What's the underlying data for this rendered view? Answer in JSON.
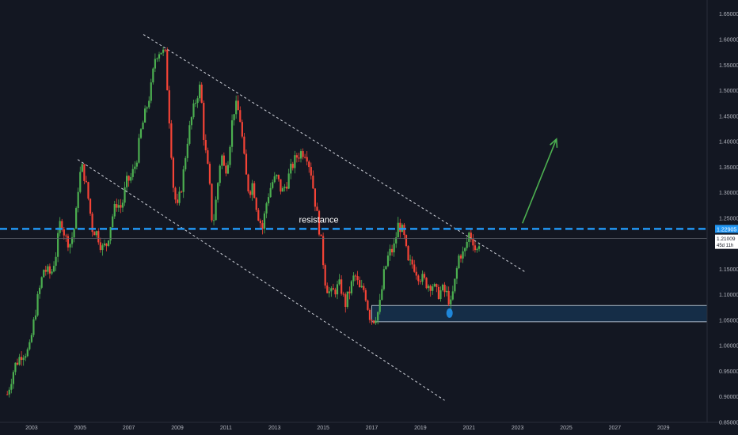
{
  "chart_data": {
    "type": "candlestick",
    "title": "",
    "xlabel": "",
    "ylabel": "",
    "xlim": [
      2001.7,
      2030.8
    ],
    "ylim": [
      0.85,
      1.6775
    ],
    "x_ticks": [
      2003,
      2005,
      2007,
      2009,
      2011,
      2013,
      2015,
      2017,
      2019,
      2021,
      2023,
      2025,
      2027,
      2029
    ],
    "y_ticks": [
      "0.85000",
      "0.90000",
      "0.95000",
      "1.00000",
      "1.05000",
      "1.10000",
      "1.15000",
      "1.20000",
      "1.25000",
      "1.30000",
      "1.35000",
      "1.40000",
      "1.45000",
      "1.50000",
      "1.55000",
      "1.60000",
      "1.65000"
    ],
    "grid": false,
    "colors": {
      "background": "#131722",
      "up": "#4caf50",
      "down": "#f44336",
      "resistance_line": "#2196f3",
      "arrow": "#4caf50",
      "trend_line": "#d1d4dc",
      "axis_text": "#b2b5be"
    },
    "price_labels": {
      "resistance_value": "1.22905",
      "current_value": "1.21009",
      "countdown": "45d 11h"
    },
    "annotations": {
      "resistance_label": "resistance"
    },
    "resistance_level": 1.22905,
    "current_price": 1.21009,
    "support_zone": {
      "x_start": 2017.0,
      "x_end": 2030.8,
      "y_low": 1.047,
      "y_high": 1.079
    },
    "channel_upper": [
      [
        2007.6,
        1.61
      ],
      [
        2023.3,
        1.145
      ]
    ],
    "channel_lower": [
      [
        2004.9,
        1.365
      ],
      [
        2020.0,
        0.893
      ]
    ],
    "forecast_arrow": [
      [
        2023.2,
        1.24
      ],
      [
        2024.6,
        1.405
      ]
    ],
    "low_marker": {
      "x": 2020.2,
      "y": 1.064
    },
    "price_path": [
      [
        2002.0,
        0.905
      ],
      [
        2002.3,
        0.96
      ],
      [
        2002.6,
        0.985
      ],
      [
        2002.9,
        0.99
      ],
      [
        2003.2,
        1.08
      ],
      [
        2003.5,
        1.15
      ],
      [
        2003.8,
        1.14
      ],
      [
        2004.0,
        1.18
      ],
      [
        2004.2,
        1.25
      ],
      [
        2004.4,
        1.21
      ],
      [
        2004.6,
        1.2
      ],
      [
        2004.8,
        1.24
      ],
      [
        2004.95,
        1.33
      ],
      [
        2005.1,
        1.35
      ],
      [
        2005.3,
        1.3
      ],
      [
        2005.5,
        1.23
      ],
      [
        2005.7,
        1.22
      ],
      [
        2005.9,
        1.19
      ],
      [
        2006.1,
        1.2
      ],
      [
        2006.3,
        1.25
      ],
      [
        2006.5,
        1.28
      ],
      [
        2006.7,
        1.27
      ],
      [
        2006.9,
        1.32
      ],
      [
        2007.1,
        1.33
      ],
      [
        2007.3,
        1.36
      ],
      [
        2007.5,
        1.42
      ],
      [
        2007.7,
        1.46
      ],
      [
        2007.9,
        1.5
      ],
      [
        2008.1,
        1.57
      ],
      [
        2008.3,
        1.58
      ],
      [
        2008.5,
        1.57
      ],
      [
        2008.7,
        1.42
      ],
      [
        2008.85,
        1.3
      ],
      [
        2009.0,
        1.27
      ],
      [
        2009.2,
        1.32
      ],
      [
        2009.4,
        1.4
      ],
      [
        2009.6,
        1.45
      ],
      [
        2009.8,
        1.49
      ],
      [
        2009.95,
        1.51
      ],
      [
        2010.1,
        1.4
      ],
      [
        2010.3,
        1.33
      ],
      [
        2010.45,
        1.23
      ],
      [
        2010.6,
        1.29
      ],
      [
        2010.8,
        1.38
      ],
      [
        2010.95,
        1.34
      ],
      [
        2011.1,
        1.37
      ],
      [
        2011.3,
        1.46
      ],
      [
        2011.45,
        1.47
      ],
      [
        2011.6,
        1.44
      ],
      [
        2011.8,
        1.34
      ],
      [
        2011.95,
        1.3
      ],
      [
        2012.1,
        1.32
      ],
      [
        2012.3,
        1.26
      ],
      [
        2012.5,
        1.23
      ],
      [
        2012.7,
        1.29
      ],
      [
        2012.9,
        1.32
      ],
      [
        2013.1,
        1.33
      ],
      [
        2013.3,
        1.3
      ],
      [
        2013.5,
        1.32
      ],
      [
        2013.7,
        1.35
      ],
      [
        2013.9,
        1.37
      ],
      [
        2014.1,
        1.38
      ],
      [
        2014.3,
        1.38
      ],
      [
        2014.5,
        1.34
      ],
      [
        2014.7,
        1.27
      ],
      [
        2014.9,
        1.21
      ],
      [
        2015.1,
        1.12
      ],
      [
        2015.3,
        1.1
      ],
      [
        2015.5,
        1.11
      ],
      [
        2015.7,
        1.12
      ],
      [
        2015.9,
        1.08
      ],
      [
        2016.1,
        1.11
      ],
      [
        2016.3,
        1.14
      ],
      [
        2016.5,
        1.11
      ],
      [
        2016.7,
        1.11
      ],
      [
        2016.9,
        1.06
      ],
      [
        2017.05,
        1.05
      ],
      [
        2017.3,
        1.07
      ],
      [
        2017.5,
        1.14
      ],
      [
        2017.7,
        1.18
      ],
      [
        2017.9,
        1.19
      ],
      [
        2018.1,
        1.24
      ],
      [
        2018.3,
        1.22
      ],
      [
        2018.5,
        1.16
      ],
      [
        2018.7,
        1.16
      ],
      [
        2018.9,
        1.14
      ],
      [
        2019.1,
        1.13
      ],
      [
        2019.3,
        1.12
      ],
      [
        2019.5,
        1.12
      ],
      [
        2019.7,
        1.1
      ],
      [
        2019.9,
        1.11
      ],
      [
        2020.1,
        1.1
      ],
      [
        2020.25,
        1.08
      ],
      [
        2020.4,
        1.12
      ],
      [
        2020.6,
        1.18
      ],
      [
        2020.8,
        1.18
      ],
      [
        2021.0,
        1.22
      ],
      [
        2021.15,
        1.21
      ],
      [
        2021.3,
        1.18
      ],
      [
        2021.45,
        1.21
      ]
    ]
  }
}
